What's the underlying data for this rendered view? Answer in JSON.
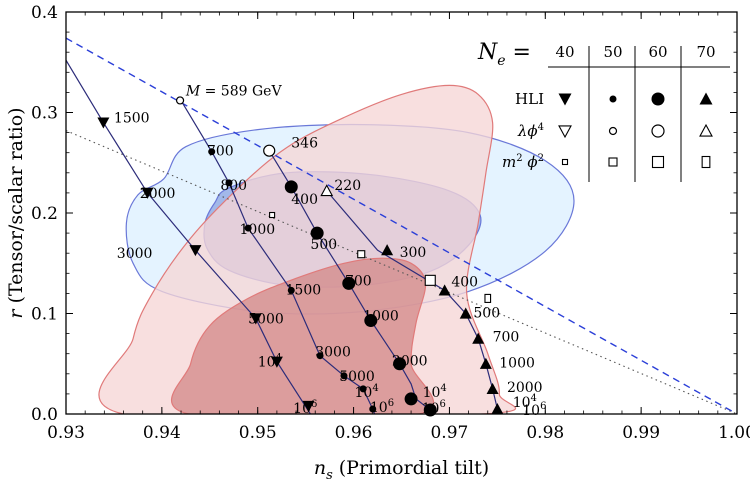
{
  "chart_data": {
    "type": "scatter",
    "xlim": [
      0.93,
      1.0
    ],
    "ylim": [
      0.0,
      0.4
    ],
    "xlabel": {
      "var": "n",
      "sub": "s",
      "text": " (Primordial tilt)"
    },
    "ylabel": {
      "var": "r",
      "text": " (Tensor/scalar ratio)"
    },
    "x_ticks": [
      {
        "v": 0.93,
        "label": "0.93"
      },
      {
        "v": 0.94,
        "label": "0.94"
      },
      {
        "v": 0.95,
        "label": "0.95"
      },
      {
        "v": 0.96,
        "label": "0.96"
      },
      {
        "v": 0.97,
        "label": "0.97"
      },
      {
        "v": 0.98,
        "label": "0.98"
      },
      {
        "v": 0.99,
        "label": "0.99"
      },
      {
        "v": 1.0,
        "label": "1.00"
      }
    ],
    "y_ticks": [
      {
        "v": 0.0,
        "label": "0.0"
      },
      {
        "v": 0.1,
        "label": "0.1"
      },
      {
        "v": 0.2,
        "label": "0.2"
      },
      {
        "v": 0.3,
        "label": "0.3"
      },
      {
        "v": 0.4,
        "label": "0.4"
      }
    ],
    "colors": {
      "blue_outer_fill": "#dcefff",
      "blue_inner_fill": "#8fa6e3",
      "blue_edge": "#6a78d8",
      "red_outer_fill": "#f6d6d6",
      "red_inner_fill": "#d48a8a",
      "red_edge": "#e07a7a",
      "line_color": "#2c2c7a",
      "dashed_blue": "#2b3fd8",
      "dotted_gray": "#555555"
    },
    "contours": [
      {
        "name": "blue-outer",
        "fill": "#dcefff",
        "stroke": "#6a78d8",
        "points": [
          [
            0.9402,
            0.234
          ],
          [
            0.9425,
            0.266
          ],
          [
            0.95,
            0.283
          ],
          [
            0.961,
            0.288
          ],
          [
            0.972,
            0.28
          ],
          [
            0.98,
            0.252
          ],
          [
            0.983,
            0.212
          ],
          [
            0.98,
            0.162
          ],
          [
            0.972,
            0.122
          ],
          [
            0.961,
            0.102
          ],
          [
            0.95,
            0.102
          ],
          [
            0.94,
            0.122
          ],
          [
            0.937,
            0.15
          ],
          [
            0.9363,
            0.19
          ],
          [
            0.9375,
            0.218
          ]
        ]
      },
      {
        "name": "blue-inner",
        "fill": "#8fa6e3",
        "stroke": "#6a78d8",
        "points": [
          [
            0.947,
            0.225
          ],
          [
            0.953,
            0.24
          ],
          [
            0.962,
            0.238
          ],
          [
            0.97,
            0.222
          ],
          [
            0.9732,
            0.198
          ],
          [
            0.972,
            0.168
          ],
          [
            0.968,
            0.142
          ],
          [
            0.961,
            0.128
          ],
          [
            0.953,
            0.128
          ],
          [
            0.947,
            0.143
          ],
          [
            0.9447,
            0.165
          ],
          [
            0.9445,
            0.19
          ],
          [
            0.9455,
            0.21
          ]
        ]
      },
      {
        "name": "red-outer",
        "fill": "#f6d6d6",
        "stroke": "#e07a7a",
        "points": [
          [
            0.936,
            0.0
          ],
          [
            0.937,
            0.075
          ],
          [
            0.939,
            0.12
          ],
          [
            0.943,
            0.175
          ],
          [
            0.948,
            0.225
          ],
          [
            0.953,
            0.265
          ],
          [
            0.959,
            0.295
          ],
          [
            0.965,
            0.318
          ],
          [
            0.97,
            0.327
          ],
          [
            0.973,
            0.318
          ],
          [
            0.9745,
            0.29
          ],
          [
            0.9738,
            0.24
          ],
          [
            0.973,
            0.19
          ],
          [
            0.9718,
            0.12
          ],
          [
            0.974,
            0.06
          ],
          [
            0.9752,
            0.02
          ],
          [
            0.9735,
            0.0
          ]
        ]
      },
      {
        "name": "red-inner",
        "fill": "#d48a8a",
        "stroke": "#e07a7a",
        "points": [
          [
            0.9428,
            0.0
          ],
          [
            0.943,
            0.05
          ],
          [
            0.945,
            0.088
          ],
          [
            0.949,
            0.115
          ],
          [
            0.954,
            0.135
          ],
          [
            0.959,
            0.15
          ],
          [
            0.963,
            0.155
          ],
          [
            0.966,
            0.15
          ],
          [
            0.9675,
            0.13
          ],
          [
            0.9665,
            0.09
          ],
          [
            0.966,
            0.05
          ],
          [
            0.9668,
            0.0
          ]
        ]
      }
    ],
    "straight_lines": [
      {
        "name": "dashed-blue-line",
        "style": "dashed",
        "color": "#2b3fd8",
        "from": [
          0.93,
          0.374
        ],
        "to": [
          1.0,
          0.0
        ]
      },
      {
        "name": "dotted-gray-line",
        "style": "dotted",
        "color": "#555555",
        "from": [
          0.93,
          0.282
        ],
        "to": [
          1.0,
          0.0
        ]
      }
    ],
    "curves": [
      {
        "name": "hli-track-40",
        "color": "#2c2c7a",
        "points": [
          [
            0.93,
            0.352
          ],
          [
            0.9339,
            0.29
          ],
          [
            0.9385,
            0.22
          ],
          [
            0.9435,
            0.163
          ],
          [
            0.9498,
            0.095
          ],
          [
            0.952,
            0.052
          ],
          [
            0.9555,
            0.0
          ]
        ]
      },
      {
        "name": "hli-track-50",
        "color": "#2c2c7a",
        "points": [
          [
            0.942,
            0.312
          ],
          [
            0.9452,
            0.261
          ],
          [
            0.947,
            0.23
          ],
          [
            0.949,
            0.185
          ],
          [
            0.9535,
            0.123
          ],
          [
            0.9565,
            0.058
          ],
          [
            0.959,
            0.038
          ],
          [
            0.961,
            0.025
          ],
          [
            0.962,
            0.005
          ],
          [
            0.9622,
            0.0
          ]
        ]
      },
      {
        "name": "hli-track-60",
        "color": "#2c2c7a",
        "points": [
          [
            0.9512,
            0.262
          ],
          [
            0.9535,
            0.226
          ],
          [
            0.9562,
            0.18
          ],
          [
            0.9595,
            0.13
          ],
          [
            0.9618,
            0.093
          ],
          [
            0.9648,
            0.05
          ],
          [
            0.966,
            0.03
          ],
          [
            0.9665,
            0.015
          ],
          [
            0.968,
            0.004
          ],
          [
            0.9683,
            0.0
          ]
        ]
      },
      {
        "name": "hli-track-70",
        "color": "#2c2c7a",
        "points": [
          [
            0.9572,
            0.222
          ],
          [
            0.9625,
            0.163
          ],
          [
            0.9695,
            0.123
          ],
          [
            0.9717,
            0.1
          ],
          [
            0.973,
            0.075
          ],
          [
            0.9738,
            0.05
          ],
          [
            0.9745,
            0.025
          ],
          [
            0.975,
            0.005
          ],
          [
            0.9752,
            0.0
          ]
        ]
      }
    ],
    "points": [
      {
        "x": 0.9419,
        "y": 0.312,
        "marker": "circle-open",
        "size": 7
      },
      {
        "x": 0.9339,
        "y": 0.29,
        "marker": "tri-down-filled",
        "size": 12
      },
      {
        "x": 0.9385,
        "y": 0.22,
        "marker": "tri-down-filled",
        "size": 12
      },
      {
        "x": 0.9435,
        "y": 0.163,
        "marker": "tri-down-filled",
        "size": 12
      },
      {
        "x": 0.9498,
        "y": 0.095,
        "marker": "tri-down-filled",
        "size": 12
      },
      {
        "x": 0.952,
        "y": 0.052,
        "marker": "tri-down-filled",
        "size": 12
      },
      {
        "x": 0.9553,
        "y": 0.008,
        "marker": "tri-down-filled",
        "size": 12
      },
      {
        "x": 0.9452,
        "y": 0.261,
        "marker": "dot",
        "size": 7
      },
      {
        "x": 0.947,
        "y": 0.23,
        "marker": "dot",
        "size": 7
      },
      {
        "x": 0.949,
        "y": 0.185,
        "marker": "dot",
        "size": 7
      },
      {
        "x": 0.9535,
        "y": 0.123,
        "marker": "dot",
        "size": 7
      },
      {
        "x": 0.9565,
        "y": 0.058,
        "marker": "dot",
        "size": 7
      },
      {
        "x": 0.959,
        "y": 0.038,
        "marker": "dot",
        "size": 7
      },
      {
        "x": 0.961,
        "y": 0.025,
        "marker": "dot",
        "size": 7
      },
      {
        "x": 0.962,
        "y": 0.005,
        "marker": "dot",
        "size": 7
      },
      {
        "x": 0.9512,
        "y": 0.262,
        "marker": "circle-open",
        "size": 11
      },
      {
        "x": 0.9535,
        "y": 0.226,
        "marker": "dot",
        "size": 13
      },
      {
        "x": 0.9562,
        "y": 0.18,
        "marker": "dot",
        "size": 13
      },
      {
        "x": 0.9595,
        "y": 0.13,
        "marker": "dot",
        "size": 13
      },
      {
        "x": 0.9618,
        "y": 0.093,
        "marker": "dot",
        "size": 13
      },
      {
        "x": 0.9648,
        "y": 0.05,
        "marker": "dot",
        "size": 13
      },
      {
        "x": 0.966,
        "y": 0.015,
        "marker": "dot",
        "size": 13
      },
      {
        "x": 0.968,
        "y": 0.004,
        "marker": "dot",
        "size": 13
      },
      {
        "x": 0.9572,
        "y": 0.222,
        "marker": "tri-up-open",
        "size": 11
      },
      {
        "x": 0.9635,
        "y": 0.163,
        "marker": "tri-up-filled",
        "size": 12
      },
      {
        "x": 0.9695,
        "y": 0.123,
        "marker": "tri-up-filled",
        "size": 12
      },
      {
        "x": 0.9717,
        "y": 0.1,
        "marker": "tri-up-filled",
        "size": 12
      },
      {
        "x": 0.973,
        "y": 0.075,
        "marker": "tri-up-filled",
        "size": 12
      },
      {
        "x": 0.9738,
        "y": 0.05,
        "marker": "tri-up-filled",
        "size": 12
      },
      {
        "x": 0.9745,
        "y": 0.025,
        "marker": "tri-up-filled",
        "size": 12
      },
      {
        "x": 0.975,
        "y": 0.005,
        "marker": "tri-up-filled",
        "size": 12
      },
      {
        "x": 0.9515,
        "y": 0.198,
        "marker": "square-open",
        "size": 5
      },
      {
        "x": 0.9608,
        "y": 0.159,
        "marker": "square-open",
        "size": 7
      },
      {
        "x": 0.968,
        "y": 0.133,
        "marker": "square-open",
        "size": 10
      },
      {
        "x": 0.974,
        "y": 0.115,
        "marker": "rect-open",
        "size": 8
      }
    ],
    "point_labels": [
      {
        "x": 0.9425,
        "y": 0.322,
        "text": "589 GeV",
        "prefix": "M",
        "eq": " = "
      },
      {
        "x": 0.935,
        "y": 0.295,
        "text": "1500"
      },
      {
        "x": 0.9447,
        "y": 0.262,
        "text": "700"
      },
      {
        "x": 0.9461,
        "y": 0.228,
        "text": "800"
      },
      {
        "x": 0.9377,
        "y": 0.22,
        "text": "2000"
      },
      {
        "x": 0.9535,
        "y": 0.27,
        "text": "346"
      },
      {
        "x": 0.9535,
        "y": 0.214,
        "text": "400"
      },
      {
        "x": 0.958,
        "y": 0.228,
        "text": "220"
      },
      {
        "x": 0.9481,
        "y": 0.184,
        "text": "1000"
      },
      {
        "x": 0.9555,
        "y": 0.169,
        "text": "500"
      },
      {
        "x": 0.9648,
        "y": 0.161,
        "text": "300"
      },
      {
        "x": 0.9353,
        "y": 0.16,
        "text": "3000"
      },
      {
        "x": 0.9591,
        "y": 0.133,
        "text": "700"
      },
      {
        "x": 0.9702,
        "y": 0.132,
        "text": "400"
      },
      {
        "x": 0.9529,
        "y": 0.124,
        "text": "1500"
      },
      {
        "x": 0.949,
        "y": 0.095,
        "text": "5000"
      },
      {
        "x": 0.961,
        "y": 0.098,
        "text": "1000"
      },
      {
        "x": 0.9725,
        "y": 0.101,
        "text": "500"
      },
      {
        "x": 0.9745,
        "y": 0.077,
        "text": "700"
      },
      {
        "x": 0.956,
        "y": 0.062,
        "text": "3000"
      },
      {
        "x": 0.964,
        "y": 0.053,
        "text": "2000"
      },
      {
        "x": 0.9752,
        "y": 0.051,
        "text": "1000"
      },
      {
        "x": 0.95,
        "y": 0.052,
        "text": "10",
        "sup": "4"
      },
      {
        "x": 0.9585,
        "y": 0.038,
        "text": "5000"
      },
      {
        "x": 0.976,
        "y": 0.027,
        "text": "2000"
      },
      {
        "x": 0.9601,
        "y": 0.022,
        "text": "10",
        "sup": "4"
      },
      {
        "x": 0.9672,
        "y": 0.022,
        "text": "10",
        "sup": "4"
      },
      {
        "x": 0.9766,
        "y": 0.012,
        "text": "10",
        "sup": "4"
      },
      {
        "x": 0.9537,
        "y": 0.006,
        "text": "10",
        "sup": "6"
      },
      {
        "x": 0.9617,
        "y": 0.007,
        "text": "10",
        "sup": "6"
      },
      {
        "x": 0.9671,
        "y": 0.006,
        "text": "10",
        "sup": "6"
      },
      {
        "x": 0.9776,
        "y": 0.004,
        "text": "10",
        "sup": "6"
      }
    ],
    "legend": {
      "placement": "top-right",
      "title_var": "N",
      "title_sub": "e",
      "title_eq": " =",
      "columns": [
        "40",
        "50",
        "60",
        "70"
      ],
      "rows": [
        {
          "label": "HLI",
          "markers": [
            "tri-down-filled",
            "dot-small",
            "dot-large",
            "tri-up-filled"
          ]
        },
        {
          "label": "λϕ",
          "label_sup": "4",
          "markers": [
            "tri-down-open",
            "circle-open-small",
            "circle-open-large",
            "tri-up-open"
          ]
        },
        {
          "label": "m",
          "label_sup": "2",
          "label_tail": " ϕ",
          "label_tail_sup": "2",
          "markers": [
            "square-tiny",
            "square-small",
            "square-large",
            "rect-tall"
          ]
        }
      ]
    }
  }
}
